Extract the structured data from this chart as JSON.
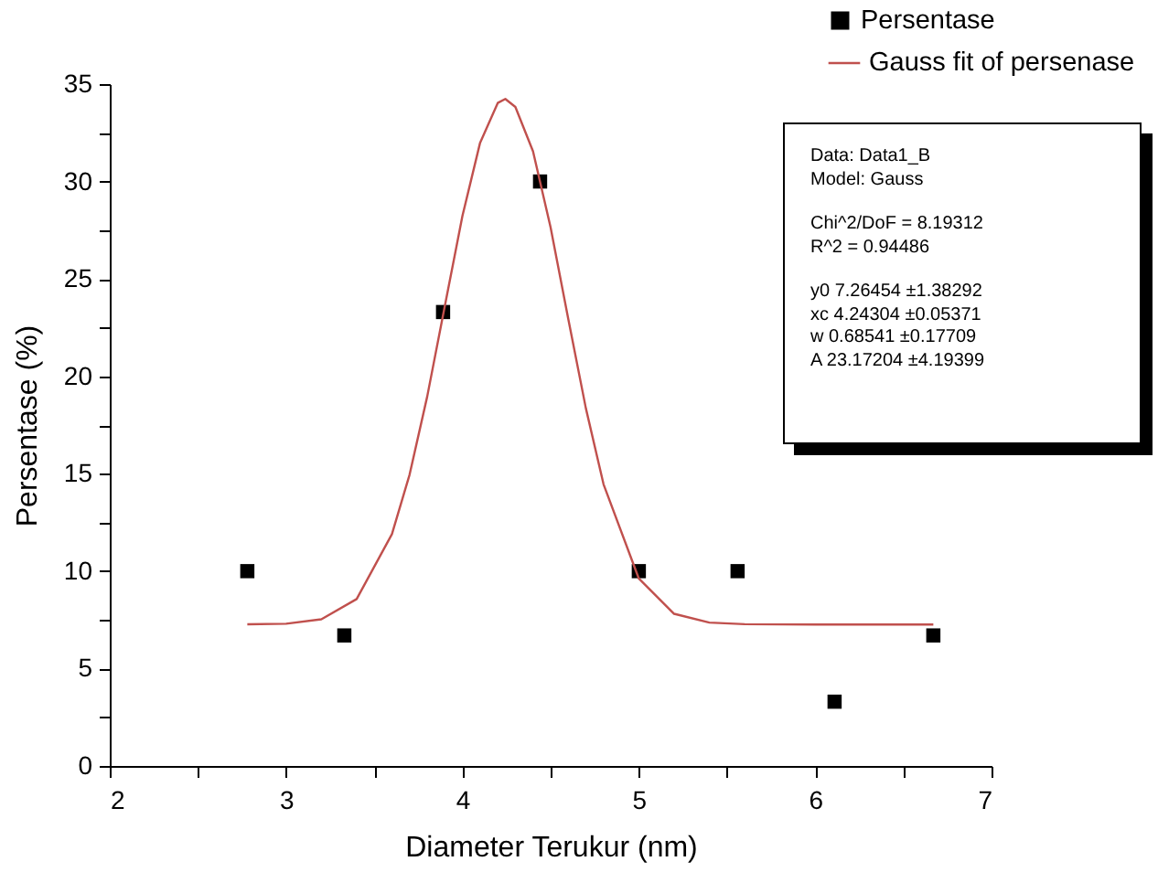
{
  "chart_data": {
    "type": "scatter",
    "xlabel": "Diameter Terukur (nm)",
    "ylabel": "Persentase (%)",
    "xlim": [
      2,
      7
    ],
    "ylim": [
      0,
      35
    ],
    "xticks": [
      2,
      {
        "value": 2.5,
        "label": null
      },
      3,
      {
        "value": 3.5,
        "label": null
      },
      4,
      {
        "value": 4.5,
        "label": null
      },
      5,
      {
        "value": 5.5,
        "label": null
      },
      6,
      {
        "value": 6.5,
        "label": null
      },
      7
    ],
    "yticks": [
      0,
      {
        "value": 2.5,
        "label": null
      },
      5,
      {
        "value": 7.5,
        "label": null
      },
      10,
      {
        "value": 12.5,
        "label": null
      },
      15,
      {
        "value": 17.5,
        "label": null
      },
      20,
      {
        "value": 22.5,
        "label": null
      },
      25,
      {
        "value": 27.5,
        "label": null
      },
      30,
      {
        "value": 32.5,
        "label": null
      },
      35
    ],
    "grid": false,
    "legend": "top right",
    "series": [
      {
        "name": "Persentase",
        "marker": "square",
        "color": "#000000",
        "x": [
          2.78,
          3.33,
          3.89,
          4.44,
          5.0,
          5.56,
          6.11,
          6.67
        ],
        "values": [
          10,
          6.7,
          23.3,
          30,
          10,
          10,
          3.3,
          6.7
        ]
      },
      {
        "name": "Gauss fit of persenase",
        "type": "line",
        "color": "#c0504d",
        "x": [
          2.78,
          3.0,
          3.2,
          3.4,
          3.6,
          3.7,
          3.8,
          3.9,
          4.0,
          4.1,
          4.2,
          4.243,
          4.3,
          4.4,
          4.5,
          4.6,
          4.7,
          4.8,
          5.0,
          5.2,
          5.4,
          5.6,
          6.0,
          6.67
        ],
        "values": [
          7.27,
          7.3,
          7.53,
          8.57,
          11.9,
          14.95,
          18.96,
          23.61,
          28.24,
          31.99,
          34.03,
          34.24,
          33.83,
          31.55,
          27.63,
          22.94,
          18.35,
          14.46,
          9.62,
          7.81,
          7.36,
          7.28,
          7.26,
          7.26
        ]
      }
    ],
    "annotations": [
      "Data: Data1_B",
      "Model: Gauss",
      "Chi^2/DoF = 8.19312",
      "R^2 = 0.94486",
      "y0 7.26454 ±1.38292",
      "xc 4.24304 ±0.05371",
      "w 0.68541 ±0.17709",
      "A 23.17204 ±4.19399"
    ]
  }
}
